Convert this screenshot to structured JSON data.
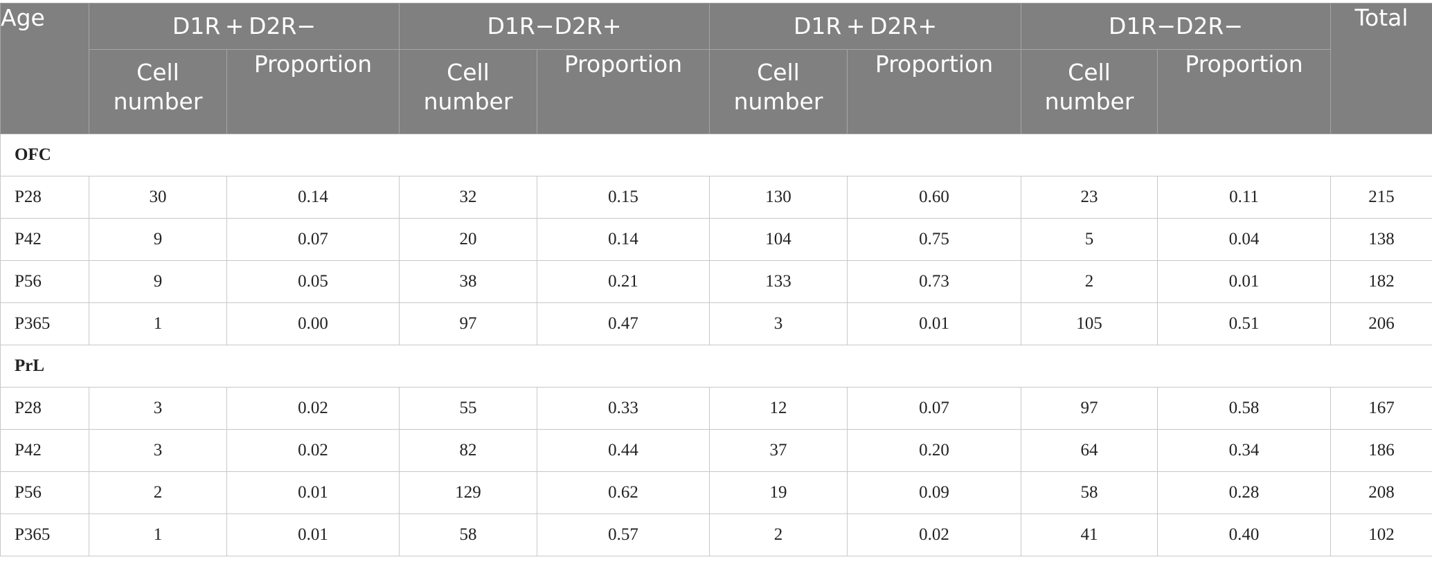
{
  "header": {
    "age": "Age",
    "groups": [
      "D1R + D2R−",
      "D1R−D2R+",
      "D1R + D2R+",
      "D1R−D2R−"
    ],
    "cell_number": "Cell number",
    "proportion": "Proportion",
    "total": "Total"
  },
  "sections": [
    {
      "name": "OFC",
      "rows": [
        {
          "age": "P28",
          "cells": [
            "30",
            "0.14",
            "32",
            "0.15",
            "130",
            "0.60",
            "23",
            "0.11"
          ],
          "total": "215"
        },
        {
          "age": "P42",
          "cells": [
            "9",
            "0.07",
            "20",
            "0.14",
            "104",
            "0.75",
            "5",
            "0.04"
          ],
          "total": "138"
        },
        {
          "age": "P56",
          "cells": [
            "9",
            "0.05",
            "38",
            "0.21",
            "133",
            "0.73",
            "2",
            "0.01"
          ],
          "total": "182"
        },
        {
          "age": "P365",
          "cells": [
            "1",
            "0.00",
            "97",
            "0.47",
            "3",
            "0.01",
            "105",
            "0.51"
          ],
          "total": "206"
        }
      ]
    },
    {
      "name": "PrL",
      "rows": [
        {
          "age": "P28",
          "cells": [
            "3",
            "0.02",
            "55",
            "0.33",
            "12",
            "0.07",
            "97",
            "0.58"
          ],
          "total": "167"
        },
        {
          "age": "P42",
          "cells": [
            "3",
            "0.02",
            "82",
            "0.44",
            "37",
            "0.20",
            "64",
            "0.34"
          ],
          "total": "186"
        },
        {
          "age": "P56",
          "cells": [
            "2",
            "0.01",
            "129",
            "0.62",
            "19",
            "0.09",
            "58",
            "0.28"
          ],
          "total": "208"
        },
        {
          "age": "P365",
          "cells": [
            "1",
            "0.01",
            "58",
            "0.57",
            "2",
            "0.02",
            "41",
            "0.40"
          ],
          "total": "102"
        }
      ]
    }
  ]
}
